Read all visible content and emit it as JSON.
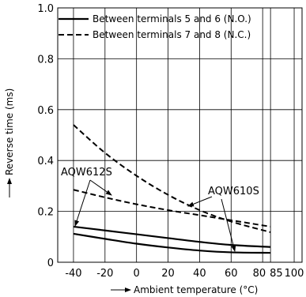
{
  "chart_data": {
    "type": "line",
    "xlabel": "Ambient temperature (°C)",
    "ylabel": "Reverse time (ms)",
    "xlim": [
      -50,
      105
    ],
    "ylim": [
      0,
      1.0
    ],
    "x_ticks": [
      -40,
      -20,
      0,
      20,
      40,
      60,
      80,
      85,
      100
    ],
    "x_tick_labels": [
      "-40",
      "-20",
      "0",
      "20",
      "40",
      "60",
      "80",
      "85",
      "100"
    ],
    "y_ticks": [
      0,
      0.2,
      0.4,
      0.6,
      0.8,
      1.0
    ],
    "y_tick_labels": [
      "0",
      "0.2",
      "0.4",
      "0.6",
      "0.8",
      "1.0"
    ],
    "grid": true,
    "legend_position": "top-left",
    "legend": [
      {
        "label": "Between terminals 5 and 6 (N.O.)",
        "style": "solid"
      },
      {
        "label": "Between terminals 7 and 8 (N.C.)",
        "style": "dashed"
      }
    ],
    "series": [
      {
        "group": "AQW612S",
        "style": "solid",
        "x": [
          -40,
          -20,
          0,
          20,
          40,
          60,
          85
        ],
        "y": [
          0.14,
          0.125,
          0.11,
          0.095,
          0.08,
          0.068,
          0.06
        ]
      },
      {
        "group": "AQW610S",
        "style": "solid",
        "x": [
          -40,
          -20,
          0,
          20,
          40,
          60,
          85
        ],
        "y": [
          0.112,
          0.092,
          0.073,
          0.058,
          0.046,
          0.039,
          0.037
        ]
      },
      {
        "group": "AQW612S",
        "style": "dashed",
        "x": [
          -40,
          -20,
          0,
          20,
          40,
          60,
          85
        ],
        "y": [
          0.285,
          0.255,
          0.228,
          0.205,
          0.185,
          0.165,
          0.14
        ]
      },
      {
        "group": "AQW610S",
        "style": "dashed",
        "x": [
          -40,
          -20,
          0,
          20,
          40,
          60,
          85
        ],
        "y": [
          0.54,
          0.43,
          0.34,
          0.265,
          0.205,
          0.16,
          0.118
        ]
      }
    ],
    "annotations": [
      {
        "text": "AQW612S",
        "position": "left"
      },
      {
        "text": "AQW610S",
        "position": "right"
      }
    ]
  }
}
